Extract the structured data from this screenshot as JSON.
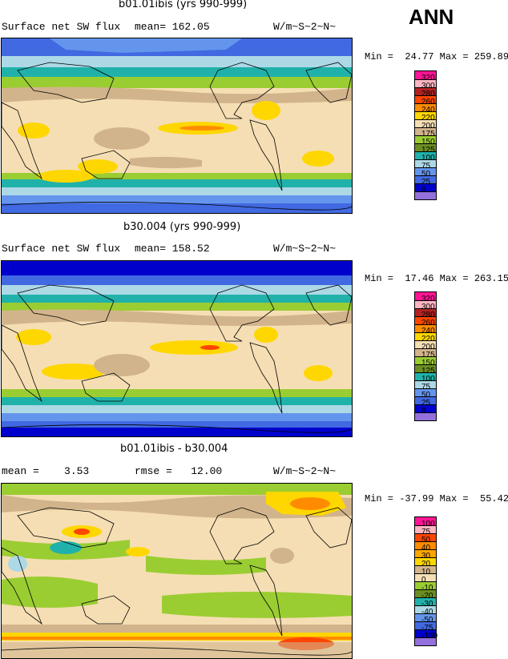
{
  "header": {
    "season": "ANN"
  },
  "panels": [
    {
      "title": "b01.01ibis (yrs 990-999)",
      "left_label": "Surface net SW flux",
      "mean_text": "mean= 162.05",
      "units": "W/m~S~2~N~",
      "minmax": "Min =  24.77 Max = 259.89",
      "legend_labels": [
        "320",
        "300",
        "280",
        "260",
        "240",
        "220",
        "200",
        "175",
        "150",
        "125",
        "100",
        "75",
        "50",
        "25",
        "0"
      ]
    },
    {
      "title": "b30.004 (yrs 990-999)",
      "left_label": "Surface net SW flux",
      "mean_text": "mean= 158.52",
      "units": "W/m~S~2~N~",
      "minmax": "Min =  17.46 Max = 263.15",
      "legend_labels": [
        "320",
        "300",
        "280",
        "260",
        "240",
        "220",
        "200",
        "175",
        "150",
        "125",
        "100",
        "75",
        "50",
        "25",
        "0"
      ]
    },
    {
      "title": "b01.01ibis - b30.004",
      "left_label": "mean =    3.53",
      "mean_text": "rmse =   12.00",
      "units": "W/m~S~2~N~",
      "minmax": "Min = -37.99 Max =  55.42",
      "legend_labels": [
        "100",
        "75",
        "50",
        "40",
        "30",
        "20",
        "10",
        "0",
        "-10",
        "-20",
        "-30",
        "-40",
        "-50",
        "-75",
        "-100"
      ]
    }
  ],
  "colors": {
    "abs_scale": [
      "#ff1493",
      "#ffb6c1",
      "#b22222",
      "#ff4500",
      "#ff8c00",
      "#ffd700",
      "#f5deb3",
      "#d2b48c",
      "#9acd32",
      "#6b8e23",
      "#20b2aa",
      "#add8e6",
      "#6495ed",
      "#4169e1",
      "#0000cd",
      "#9370db"
    ],
    "diff_scale": [
      "#ff1493",
      "#ffb6c1",
      "#ff4500",
      "#ff8c00",
      "#ffa500",
      "#ffd700",
      "#d2b48c",
      "#f5deb3",
      "#9acd32",
      "#6b8e23",
      "#20b2aa",
      "#add8e6",
      "#6495ed",
      "#4169e1",
      "#0000cd",
      "#9370db"
    ]
  }
}
